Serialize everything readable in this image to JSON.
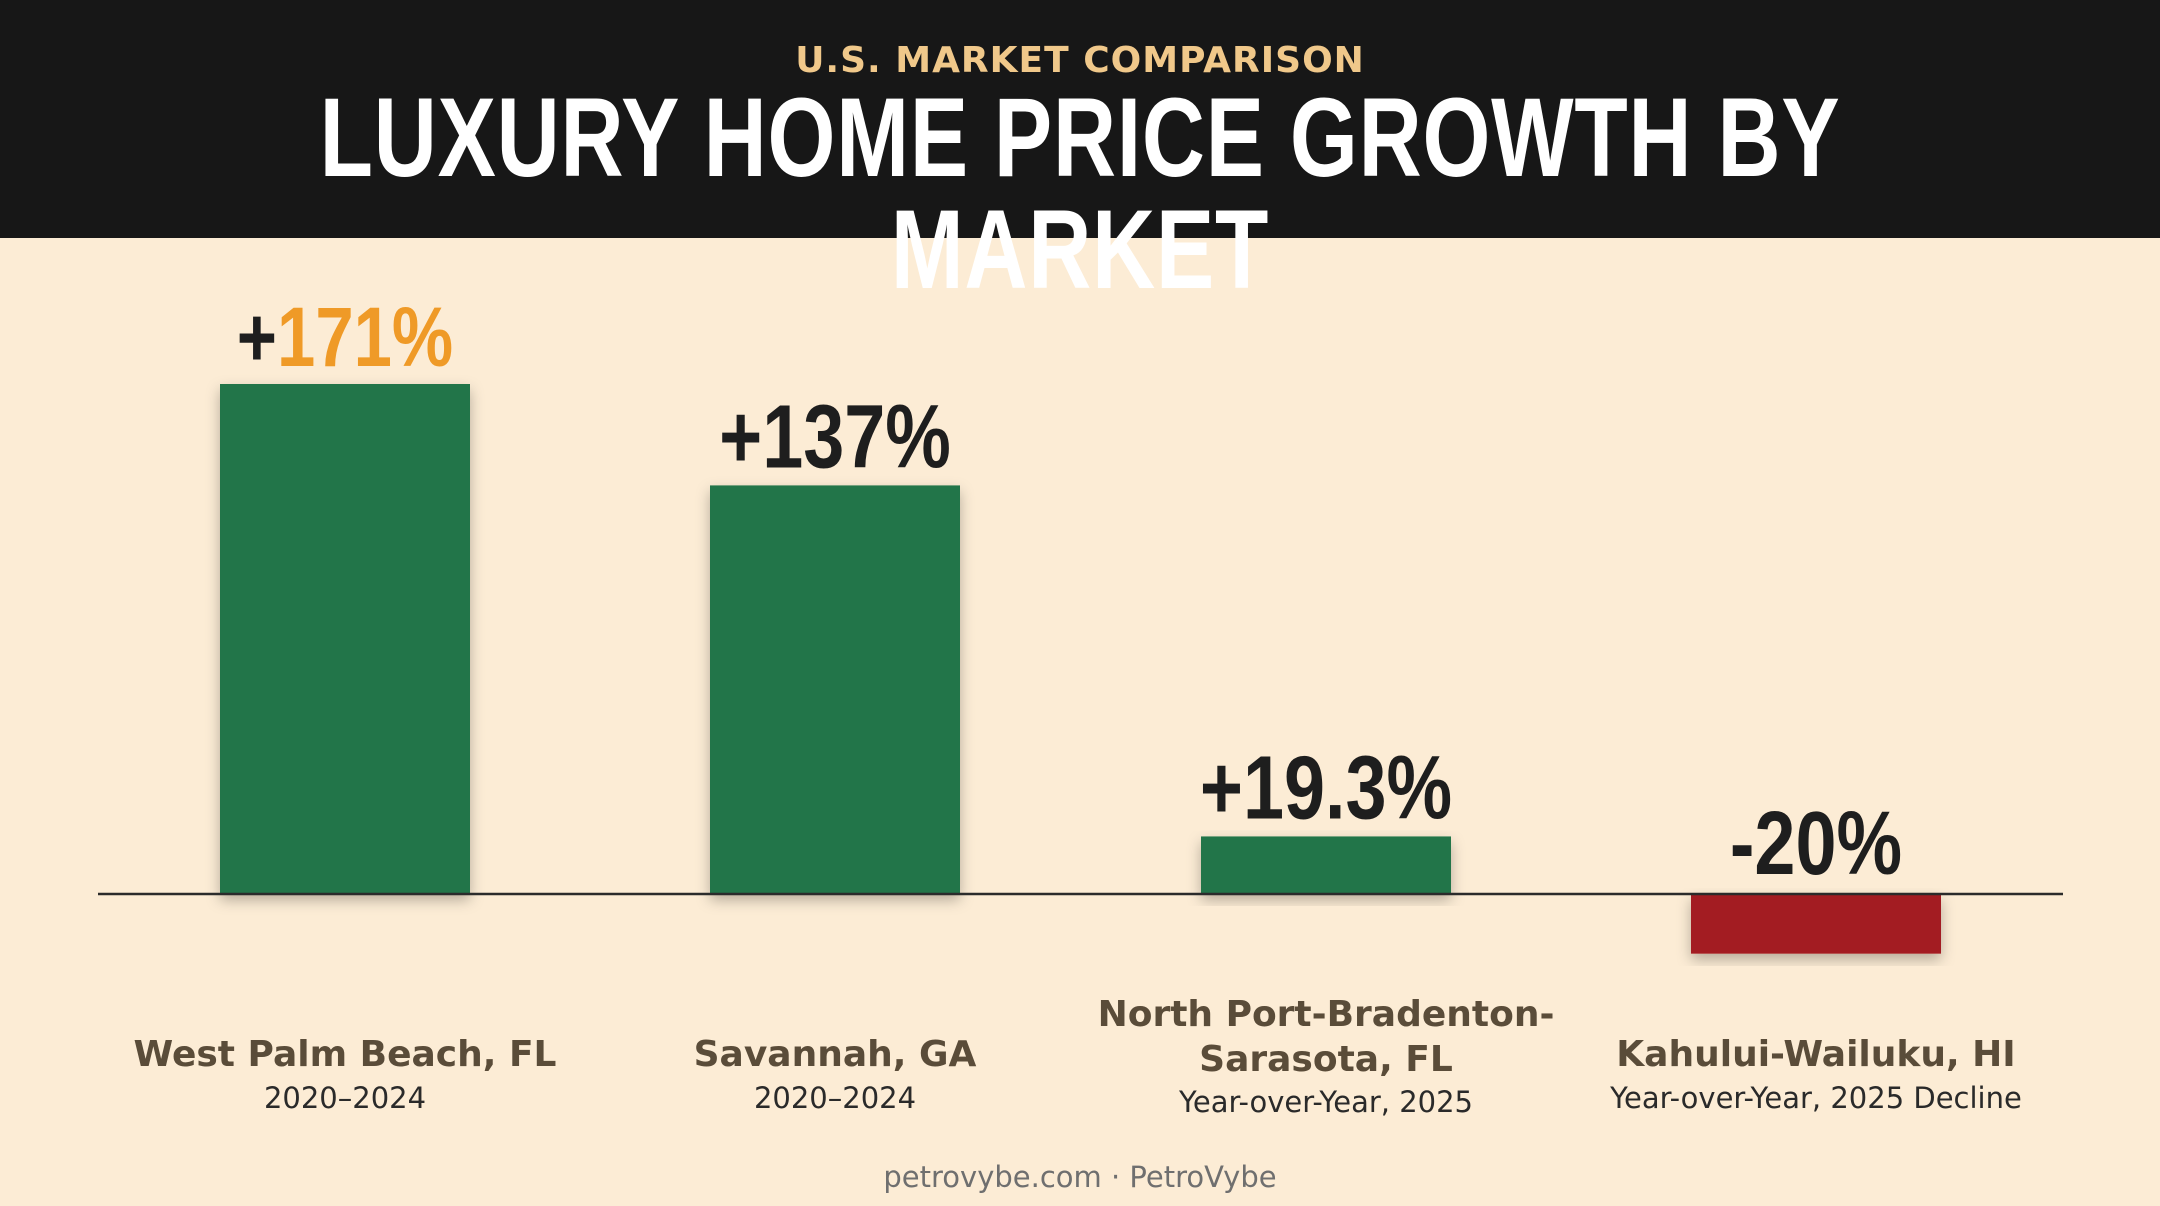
{
  "header": {
    "eyebrow": "U.S. MARKET COMPARISON",
    "title": "LUXURY HOME PRICE GROWTH BY MARKET"
  },
  "footer": {
    "text": "petrovybe.com · PetroVybe"
  },
  "colors": {
    "positive": "#21744a",
    "negative": "#a31c21",
    "accent": "#ef9a27",
    "header_bg": "#171717",
    "page_bg": "#fcecd5"
  },
  "chart_data": {
    "type": "bar",
    "title": "LUXURY HOME PRICE GROWTH BY MARKET",
    "xlabel": "",
    "ylabel": "",
    "unit": "%",
    "grid": false,
    "legend": "none",
    "ylim": [
      -20,
      171
    ],
    "bars": [
      {
        "name": "West Palm Beach, FL",
        "period": "2020–2024",
        "value": 171,
        "label_sign": "+",
        "label_number": "171%"
      },
      {
        "name": "Savannah, GA",
        "period": "2020–2024",
        "value": 137,
        "label_sign": "+",
        "label_number": "137%"
      },
      {
        "name": "North Port-Bradenton-Sarasota, FL",
        "name_lines": [
          "North Port-Bradenton-",
          "Sarasota, FL"
        ],
        "period": "Year-over-Year, 2025",
        "value": 19.3,
        "label_sign": "+",
        "label_number": "19.3%"
      },
      {
        "name": "Kahului-Wailuku, HI",
        "period": "Year-over-Year, 2025 Decline",
        "value": -20,
        "label_sign": "-",
        "label_number": "20%"
      }
    ]
  }
}
